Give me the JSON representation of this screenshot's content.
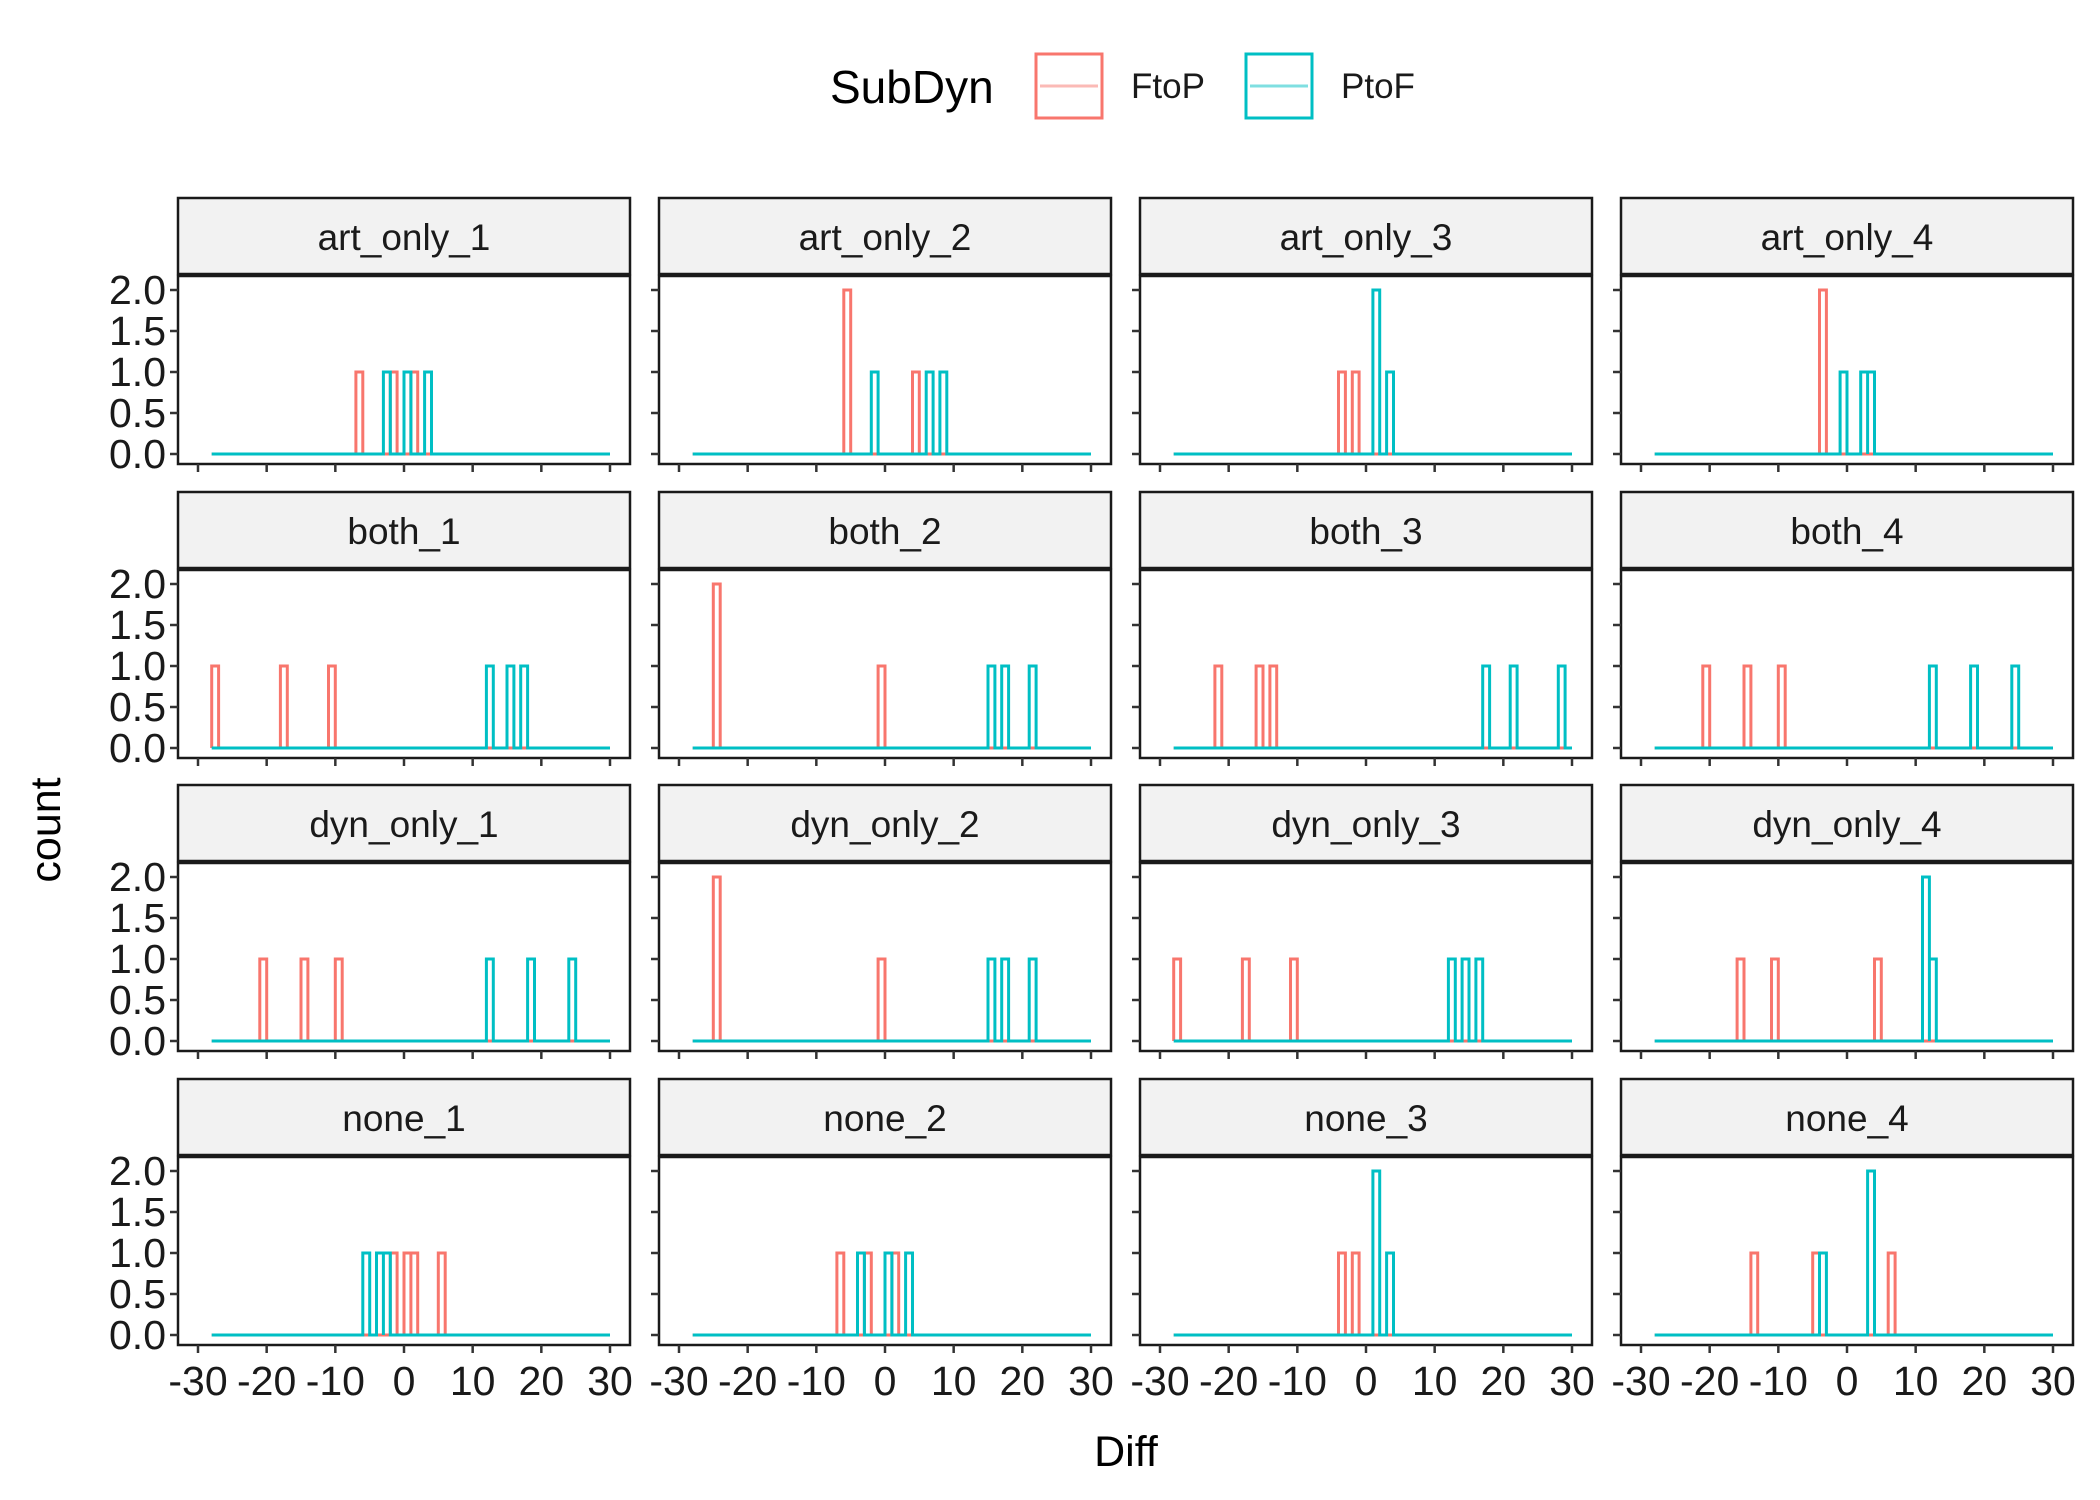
{
  "chart_data": {
    "type": "histogram-facet",
    "xlabel": "Diff",
    "ylabel": "count",
    "xlim": [
      -30,
      30
    ],
    "ylim": [
      0,
      2
    ],
    "xticks": [
      -30,
      -20,
      -10,
      0,
      10,
      20,
      30
    ],
    "yticks": [
      0,
      0.5,
      1,
      1.5,
      2
    ],
    "ytick_labels": [
      "0.0",
      "0.5",
      "1.0",
      "1.5",
      "2.0"
    ],
    "bin_width": 1,
    "x_range_drawn": [
      -28,
      29
    ],
    "legend": {
      "title": "SubDyn",
      "position": "top",
      "entries": [
        {
          "name": "FtoP",
          "color": "#F8766D"
        },
        {
          "name": "PtoF",
          "color": "#00BFC4"
        }
      ]
    },
    "ncol": 4,
    "panels": [
      {
        "label": "art_only_1",
        "FtoP": [
          {
            "x": -7,
            "count": 1
          },
          {
            "x": -2,
            "count": 1
          },
          {
            "x": 1,
            "count": 1
          }
        ],
        "PtoF": [
          {
            "x": -3,
            "count": 1
          },
          {
            "x": 0,
            "count": 1
          },
          {
            "x": 3,
            "count": 1
          }
        ]
      },
      {
        "label": "art_only_2",
        "FtoP": [
          {
            "x": -6,
            "count": 2
          },
          {
            "x": 4,
            "count": 1
          }
        ],
        "PtoF": [
          {
            "x": -2,
            "count": 1
          },
          {
            "x": 6,
            "count": 1
          },
          {
            "x": 8,
            "count": 1
          }
        ]
      },
      {
        "label": "art_only_3",
        "FtoP": [
          {
            "x": -4,
            "count": 1
          },
          {
            "x": -2,
            "count": 1
          }
        ],
        "PtoF": [
          {
            "x": 1,
            "count": 2
          },
          {
            "x": 3,
            "count": 1
          }
        ]
      },
      {
        "label": "art_only_4",
        "FtoP": [
          {
            "x": -4,
            "count": 2
          }
        ],
        "PtoF": [
          {
            "x": -1,
            "count": 1
          },
          {
            "x": 2,
            "count": 1
          },
          {
            "x": 3,
            "count": 1
          }
        ]
      },
      {
        "label": "both_1",
        "FtoP": [
          {
            "x": -28,
            "count": 1
          },
          {
            "x": -18,
            "count": 1
          },
          {
            "x": -11,
            "count": 1
          }
        ],
        "PtoF": [
          {
            "x": 12,
            "count": 1
          },
          {
            "x": 15,
            "count": 1
          },
          {
            "x": 17,
            "count": 1
          }
        ]
      },
      {
        "label": "both_2",
        "FtoP": [
          {
            "x": -25,
            "count": 2
          },
          {
            "x": -1,
            "count": 1
          }
        ],
        "PtoF": [
          {
            "x": 15,
            "count": 1
          },
          {
            "x": 17,
            "count": 1
          },
          {
            "x": 21,
            "count": 1
          }
        ]
      },
      {
        "label": "both_3",
        "FtoP": [
          {
            "x": -22,
            "count": 1
          },
          {
            "x": -16,
            "count": 1
          },
          {
            "x": -14,
            "count": 1
          }
        ],
        "PtoF": [
          {
            "x": 17,
            "count": 1
          },
          {
            "x": 21,
            "count": 1
          },
          {
            "x": 28,
            "count": 1
          }
        ]
      },
      {
        "label": "both_4",
        "FtoP": [
          {
            "x": -21,
            "count": 1
          },
          {
            "x": -15,
            "count": 1
          },
          {
            "x": -10,
            "count": 1
          }
        ],
        "PtoF": [
          {
            "x": 12,
            "count": 1
          },
          {
            "x": 18,
            "count": 1
          },
          {
            "x": 24,
            "count": 1
          }
        ]
      },
      {
        "label": "dyn_only_1",
        "FtoP": [
          {
            "x": -21,
            "count": 1
          },
          {
            "x": -15,
            "count": 1
          },
          {
            "x": -10,
            "count": 1
          }
        ],
        "PtoF": [
          {
            "x": 12,
            "count": 1
          },
          {
            "x": 18,
            "count": 1
          },
          {
            "x": 24,
            "count": 1
          }
        ]
      },
      {
        "label": "dyn_only_2",
        "FtoP": [
          {
            "x": -25,
            "count": 2
          },
          {
            "x": -1,
            "count": 1
          }
        ],
        "PtoF": [
          {
            "x": 15,
            "count": 1
          },
          {
            "x": 17,
            "count": 1
          },
          {
            "x": 21,
            "count": 1
          }
        ]
      },
      {
        "label": "dyn_only_3",
        "FtoP": [
          {
            "x": -28,
            "count": 1
          },
          {
            "x": -18,
            "count": 1
          },
          {
            "x": -11,
            "count": 1
          }
        ],
        "PtoF": [
          {
            "x": 12,
            "count": 1
          },
          {
            "x": 14,
            "count": 1
          },
          {
            "x": 16,
            "count": 1
          }
        ]
      },
      {
        "label": "dyn_only_4",
        "FtoP": [
          {
            "x": -16,
            "count": 1
          },
          {
            "x": -11,
            "count": 1
          },
          {
            "x": 4,
            "count": 1
          }
        ],
        "PtoF": [
          {
            "x": 11,
            "count": 2
          },
          {
            "x": 12,
            "count": 1
          }
        ]
      },
      {
        "label": "none_1",
        "FtoP": [
          {
            "x": -2,
            "count": 1
          },
          {
            "x": 0,
            "count": 1
          },
          {
            "x": 1,
            "count": 1
          },
          {
            "x": 5,
            "count": 1
          }
        ],
        "PtoF": [
          {
            "x": -6,
            "count": 1
          },
          {
            "x": -4,
            "count": 1
          },
          {
            "x": -3,
            "count": 1
          }
        ]
      },
      {
        "label": "none_2",
        "FtoP": [
          {
            "x": -7,
            "count": 1
          },
          {
            "x": -3,
            "count": 1
          },
          {
            "x": 1,
            "count": 1
          }
        ],
        "PtoF": [
          {
            "x": -4,
            "count": 1
          },
          {
            "x": 0,
            "count": 1
          },
          {
            "x": 3,
            "count": 1
          }
        ]
      },
      {
        "label": "none_3",
        "FtoP": [
          {
            "x": -4,
            "count": 1
          },
          {
            "x": -2,
            "count": 1
          }
        ],
        "PtoF": [
          {
            "x": 1,
            "count": 2
          },
          {
            "x": 3,
            "count": 1
          }
        ]
      },
      {
        "label": "none_4",
        "FtoP": [
          {
            "x": -14,
            "count": 1
          },
          {
            "x": -5,
            "count": 1
          },
          {
            "x": 6,
            "count": 1
          }
        ],
        "PtoF": [
          {
            "x": -4,
            "count": 1
          },
          {
            "x": 3,
            "count": 2
          }
        ]
      }
    ]
  }
}
